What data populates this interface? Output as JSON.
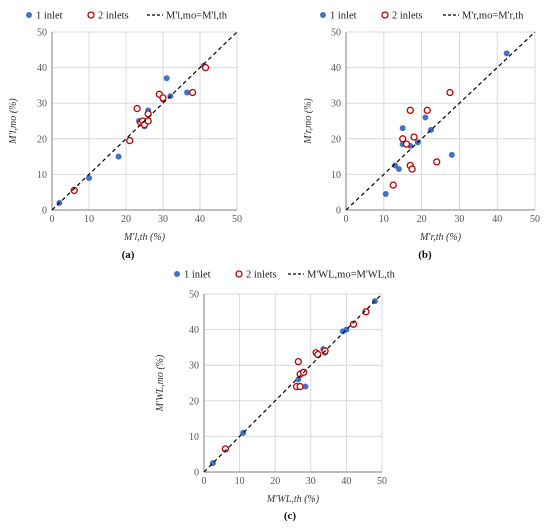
{
  "colors": {
    "inlet1": "#4472C4",
    "inlet2": "#C00000",
    "grid": "#D9D9D9",
    "axis": "#7F7F7F",
    "ref": "#000000"
  },
  "chart_data": [
    {
      "type": "scatter",
      "panel_label": "(a)",
      "xlabel": "M′l,th (%)",
      "ylabel": "M′l,mo (%)",
      "xlim": [
        0,
        50
      ],
      "ylim": [
        0,
        50
      ],
      "xticks": [
        "0",
        "10",
        "20",
        "30",
        "40",
        "50"
      ],
      "yticks": [
        "0",
        "10",
        "20",
        "30",
        "40",
        "50"
      ],
      "legend": [
        "1 inlet",
        "2 inlets",
        "M'l,mo=M'l,th"
      ],
      "legend_placement": "top",
      "grid": true,
      "series": [
        {
          "name": "1 inlet",
          "marker": "filled-circle",
          "points": [
            [
              2,
              2
            ],
            [
              10,
              9
            ],
            [
              18,
              15
            ],
            [
              23.5,
              25
            ],
            [
              25,
              23.5
            ],
            [
              26,
              28
            ],
            [
              30,
              31
            ],
            [
              31,
              37
            ],
            [
              32,
              32
            ],
            [
              36.5,
              33
            ],
            [
              41,
              40.5
            ]
          ]
        },
        {
          "name": "2 inlets",
          "marker": "open-circle",
          "points": [
            [
              6,
              5.5
            ],
            [
              21,
              19.5
            ],
            [
              23,
              28.5
            ],
            [
              24,
              24.5
            ],
            [
              24.5,
              25
            ],
            [
              25,
              24
            ],
            [
              26,
              25
            ],
            [
              26,
              27
            ],
            [
              29,
              32.5
            ],
            [
              30,
              31.5
            ],
            [
              38,
              33
            ],
            [
              41.5,
              40
            ]
          ]
        },
        {
          "name": "M'l,mo=M'l,th",
          "marker": "dashed-line",
          "points": [
            [
              0,
              0
            ],
            [
              50,
              50
            ]
          ]
        }
      ]
    },
    {
      "type": "scatter",
      "panel_label": "(b)",
      "xlabel": "M′r,th (%)",
      "ylabel": "M′r,mo (%)",
      "xlim": [
        0,
        50
      ],
      "ylim": [
        0,
        50
      ],
      "xticks": [
        "0",
        "10",
        "20",
        "30",
        "40",
        "50"
      ],
      "yticks": [
        "0",
        "10",
        "20",
        "30",
        "40",
        "50"
      ],
      "legend": [
        "1 inlet",
        "2 inlets",
        "M'r,mo=M'r,th"
      ],
      "legend_placement": "top",
      "grid": true,
      "series": [
        {
          "name": "1 inlet",
          "marker": "filled-circle",
          "points": [
            [
              10.5,
              4.5
            ],
            [
              13,
              12.5
            ],
            [
              14,
              11.5
            ],
            [
              15,
              23
            ],
            [
              15,
              18.5
            ],
            [
              17,
              18
            ],
            [
              19,
              19
            ],
            [
              21,
              26
            ],
            [
              22.5,
              22.5
            ],
            [
              28,
              15.5
            ],
            [
              42.5,
              44
            ]
          ]
        },
        {
          "name": "2 inlets",
          "marker": "open-circle",
          "points": [
            [
              12.5,
              7
            ],
            [
              15,
              20
            ],
            [
              16,
              18.5
            ],
            [
              17,
              28
            ],
            [
              17,
              12.5
            ],
            [
              17.5,
              11.5
            ],
            [
              18,
              20.5
            ],
            [
              21.5,
              28
            ],
            [
              24,
              13.5
            ],
            [
              27.5,
              33
            ]
          ]
        },
        {
          "name": "M'r,mo=M'r,th",
          "marker": "dashed-line",
          "points": [
            [
              0,
              0
            ],
            [
              50,
              50
            ]
          ]
        }
      ]
    },
    {
      "type": "scatter",
      "panel_label": "(c)",
      "xlabel": "M′WL,th (%)",
      "ylabel": "M′WL,mo (%)",
      "xlim": [
        0,
        50
      ],
      "ylim": [
        0,
        50
      ],
      "xticks": [
        "0",
        "10",
        "20",
        "30",
        "40",
        "50"
      ],
      "yticks": [
        "0",
        "10",
        "20",
        "30",
        "40",
        "50"
      ],
      "legend": [
        "1 inlet",
        "2 inlets",
        "M'WL,mo=M'WL,th"
      ],
      "legend_placement": "top",
      "grid": true,
      "series": [
        {
          "name": "1 inlet",
          "marker": "filled-circle",
          "points": [
            [
              2.5,
              2.5
            ],
            [
              11,
              11
            ],
            [
              26.5,
              26
            ],
            [
              27.5,
              28
            ],
            [
              28.5,
              24
            ],
            [
              33.5,
              34.5
            ],
            [
              34,
              33.5
            ],
            [
              39,
              39.5
            ],
            [
              40,
              40
            ],
            [
              48,
              48
            ]
          ]
        },
        {
          "name": "2 inlets",
          "marker": "open-circle",
          "points": [
            [
              6,
              6.5
            ],
            [
              26,
              24
            ],
            [
              26.5,
              31
            ],
            [
              27,
              24
            ],
            [
              27,
              27.5
            ],
            [
              28,
              28
            ],
            [
              31.5,
              33.5
            ],
            [
              32,
              33
            ],
            [
              34,
              34
            ],
            [
              42,
              41.5
            ],
            [
              45.5,
              45
            ]
          ]
        },
        {
          "name": "M'WL,mo=M'WL,th",
          "marker": "dashed-line",
          "points": [
            [
              0,
              0
            ],
            [
              50,
              50
            ]
          ]
        }
      ]
    }
  ]
}
